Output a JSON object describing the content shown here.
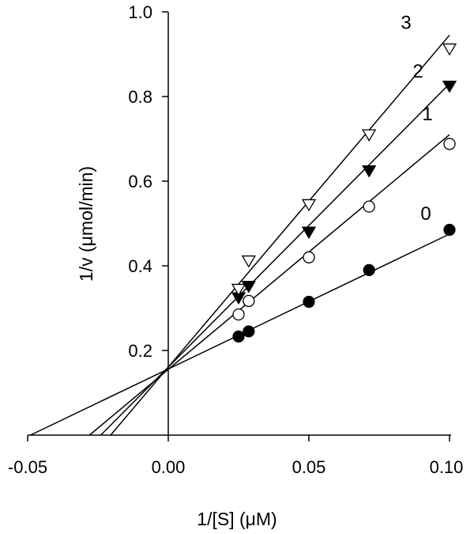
{
  "chart_data": {
    "type": "scatter",
    "title": "",
    "xlabel": "1/[S] (μM)",
    "ylabel": "1/v (μmol/min)",
    "xlim": [
      -0.05,
      0.1
    ],
    "ylim": [
      0.0,
      1.0
    ],
    "x_ticks": [
      "-0.05",
      "0.00",
      "0.05",
      "0.10"
    ],
    "y_ticks": [
      "0.2",
      "0.4",
      "0.6",
      "0.8",
      "1.0"
    ],
    "grid": false,
    "series": [
      {
        "name": "0",
        "marker": "filled-circle",
        "points": [
          [
            0.025,
            0.233
          ],
          [
            0.0286,
            0.245
          ],
          [
            0.05,
            0.315
          ],
          [
            0.0714,
            0.39
          ],
          [
            0.1,
            0.485
          ]
        ],
        "fit_line": {
          "x": [
            -0.049,
            0.1
          ],
          "y": [
            0.0,
            0.475
          ]
        }
      },
      {
        "name": "1",
        "marker": "open-circle",
        "points": [
          [
            0.025,
            0.285
          ],
          [
            0.0286,
            0.317
          ],
          [
            0.05,
            0.42
          ],
          [
            0.0714,
            0.54
          ],
          [
            0.1,
            0.688
          ]
        ],
        "fit_line": {
          "x": [
            -0.028,
            0.1
          ],
          "y": [
            0.0,
            0.71
          ]
        }
      },
      {
        "name": "2",
        "marker": "filled-triangle-down",
        "points": [
          [
            0.025,
            0.325
          ],
          [
            0.0286,
            0.352
          ],
          [
            0.05,
            0.48
          ],
          [
            0.0714,
            0.625
          ],
          [
            0.1,
            0.825
          ]
        ],
        "fit_line": {
          "x": [
            -0.024,
            0.1
          ],
          "y": [
            0.0,
            0.83
          ]
        }
      },
      {
        "name": "3",
        "marker": "open-triangle-down",
        "points": [
          [
            0.025,
            0.345
          ],
          [
            0.0286,
            0.412
          ],
          [
            0.05,
            0.545
          ],
          [
            0.0714,
            0.71
          ],
          [
            0.1,
            0.913
          ]
        ],
        "fit_line": {
          "x": [
            -0.0205,
            0.1
          ],
          "y": [
            0.0,
            0.945
          ]
        }
      }
    ],
    "series_label_positions": "near right end of each line"
  },
  "marker_color": "#000000"
}
